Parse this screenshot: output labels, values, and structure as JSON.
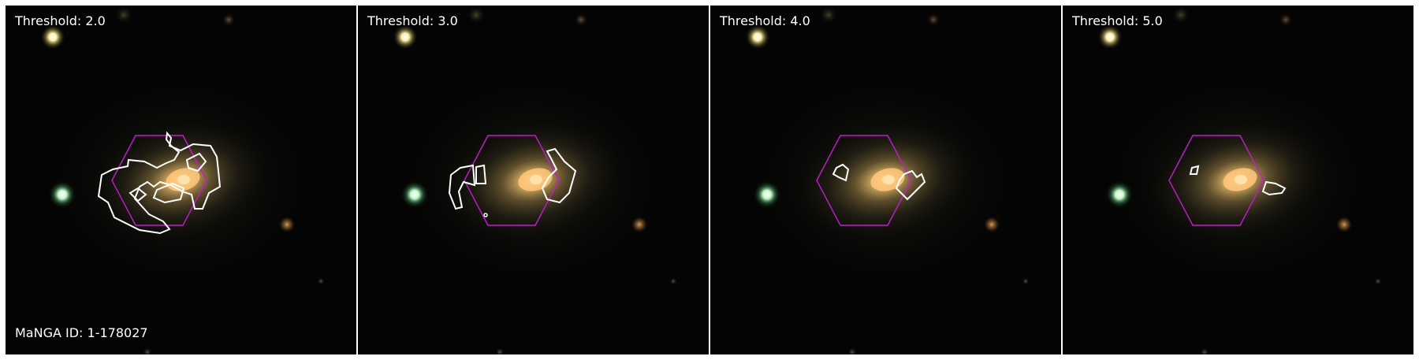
{
  "panels": [
    {
      "threshold_label": "Threshold: 2.0"
    },
    {
      "threshold_label": "Threshold: 3.0"
    },
    {
      "threshold_label": "Threshold: 4.0"
    },
    {
      "threshold_label": "Threshold: 5.0"
    }
  ],
  "manga_id_label": "MaNGA ID: 1-178027",
  "colors": {
    "background": "#040404",
    "hexagon": "#c21bd0",
    "contour": "#ffffff",
    "galaxy_core": "#ffd07a",
    "panel_border": "#ffffff"
  },
  "icons": {
    "hexagon": "ifu-hexagon-outline",
    "contour": "threshold-contour-outline"
  }
}
